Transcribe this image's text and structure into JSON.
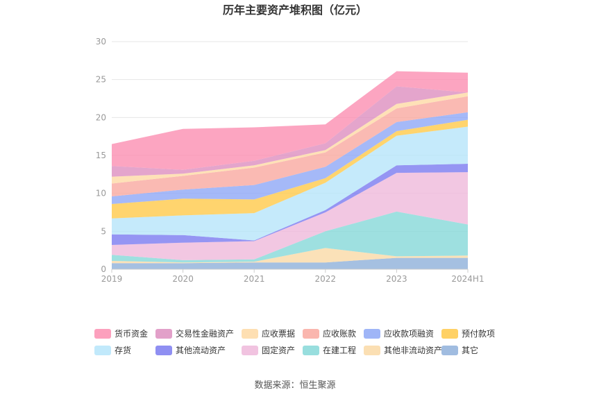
{
  "chart_data": {
    "type": "area",
    "stacked": true,
    "title": "历年主要资产堆积图（亿元）",
    "categories": [
      "2019",
      "2020",
      "2021",
      "2022",
      "2023",
      "2024H1"
    ],
    "ylim": [
      0,
      30
    ],
    "yticks": [
      0,
      5,
      10,
      15,
      20,
      25,
      30
    ],
    "grid": true,
    "legend_position": "bottom",
    "series": [
      {
        "name": "其它",
        "color": "#8fb0da",
        "values": [
          0.8,
          0.8,
          0.9,
          0.9,
          1.5,
          1.5
        ]
      },
      {
        "name": "其他非流动资产",
        "color": "#fad9a6",
        "values": [
          0.3,
          0.1,
          0.1,
          1.9,
          0.2,
          0.3
        ]
      },
      {
        "name": "在建工程",
        "color": "#86d8d8",
        "values": [
          0.8,
          0.3,
          0.3,
          2.2,
          5.9,
          4.1
        ]
      },
      {
        "name": "固定资产",
        "color": "#efb9db",
        "values": [
          1.3,
          2.3,
          2.4,
          2.5,
          5.1,
          6.9
        ]
      },
      {
        "name": "其他流动资产",
        "color": "#7b7bf0",
        "values": [
          1.4,
          1.0,
          0.1,
          0.3,
          1.0,
          1.1
        ]
      },
      {
        "name": "存货",
        "color": "#b6e5fa",
        "values": [
          2.1,
          2.6,
          3.6,
          3.6,
          3.9,
          4.9
        ]
      },
      {
        "name": "预付款项",
        "color": "#ffc94a",
        "values": [
          1.9,
          2.2,
          1.8,
          0.6,
          0.6,
          0.9
        ]
      },
      {
        "name": "应收款项融资",
        "color": "#8ea8f6",
        "values": [
          1.0,
          1.2,
          1.9,
          1.5,
          1.2,
          1.0
        ]
      },
      {
        "name": "应收账款",
        "color": "#f9a9a0",
        "values": [
          1.7,
          1.8,
          2.3,
          1.9,
          1.8,
          2.1
        ]
      },
      {
        "name": "应收票据",
        "color": "#fed9a5",
        "values": [
          0.9,
          0.3,
          0.3,
          0.3,
          0.6,
          0.5
        ]
      },
      {
        "name": "交易性金融资产",
        "color": "#dd8fbf",
        "values": [
          1.4,
          0.5,
          0.6,
          0.9,
          2.3,
          0.0
        ]
      },
      {
        "name": "货币资金",
        "color": "#fb8fb1",
        "values": [
          2.9,
          5.4,
          4.4,
          2.5,
          2.0,
          2.6
        ]
      }
    ],
    "legend_order": [
      "货币资金",
      "交易性金融资产",
      "应收票据",
      "应收账款",
      "应收款项融资",
      "预付款项",
      "存货",
      "其他流动资产",
      "固定资产",
      "在建工程",
      "其他非流动资产",
      "其它"
    ]
  },
  "source_text": "数据来源：恒生聚源"
}
